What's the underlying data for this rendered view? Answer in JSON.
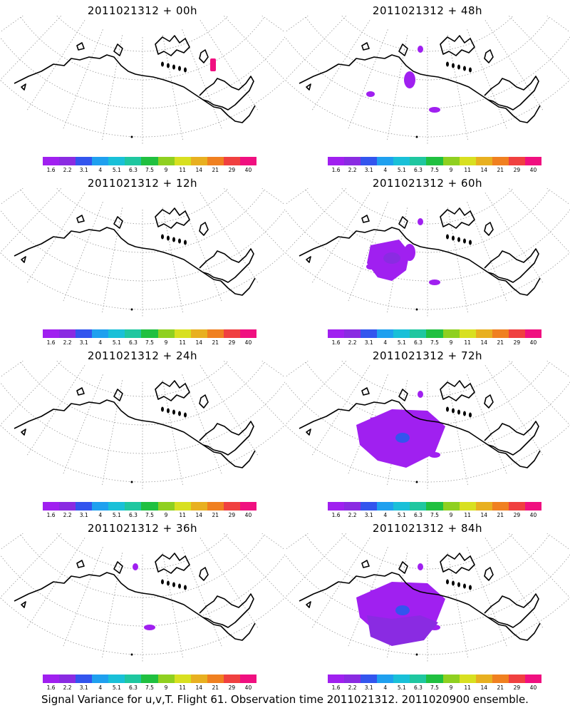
{
  "colorbar": {
    "colors": [
      "#a020f0",
      "#8a2be2",
      "#3355ee",
      "#1fa0ef",
      "#19c0d8",
      "#1fc7a0",
      "#20c040",
      "#8fd020",
      "#d8e020",
      "#e8b020",
      "#f08020",
      "#f04040",
      "#f01080"
    ],
    "labels": [
      "1.6",
      "2.2",
      "3.1",
      "4",
      "5.1",
      "6.3",
      "7.5",
      "9",
      "11",
      "14",
      "21",
      "29",
      "40"
    ]
  },
  "panels": [
    {
      "title": "2011021312 + 00h",
      "level": 0
    },
    {
      "title": "2011021312 + 48h",
      "level": 2
    },
    {
      "title": "2011021312 + 12h",
      "level": 0
    },
    {
      "title": "2011021312 + 60h",
      "level": 3
    },
    {
      "title": "2011021312 + 24h",
      "level": 0
    },
    {
      "title": "2011021312 + 72h",
      "level": 4
    },
    {
      "title": "2011021312 + 36h",
      "level": 1
    },
    {
      "title": "2011021312 + 84h",
      "level": 5
    }
  ],
  "footer": "Signal Variance for u,v,T. Flight 61. Observation time 2011021312. 2011020900 ensemble."
}
